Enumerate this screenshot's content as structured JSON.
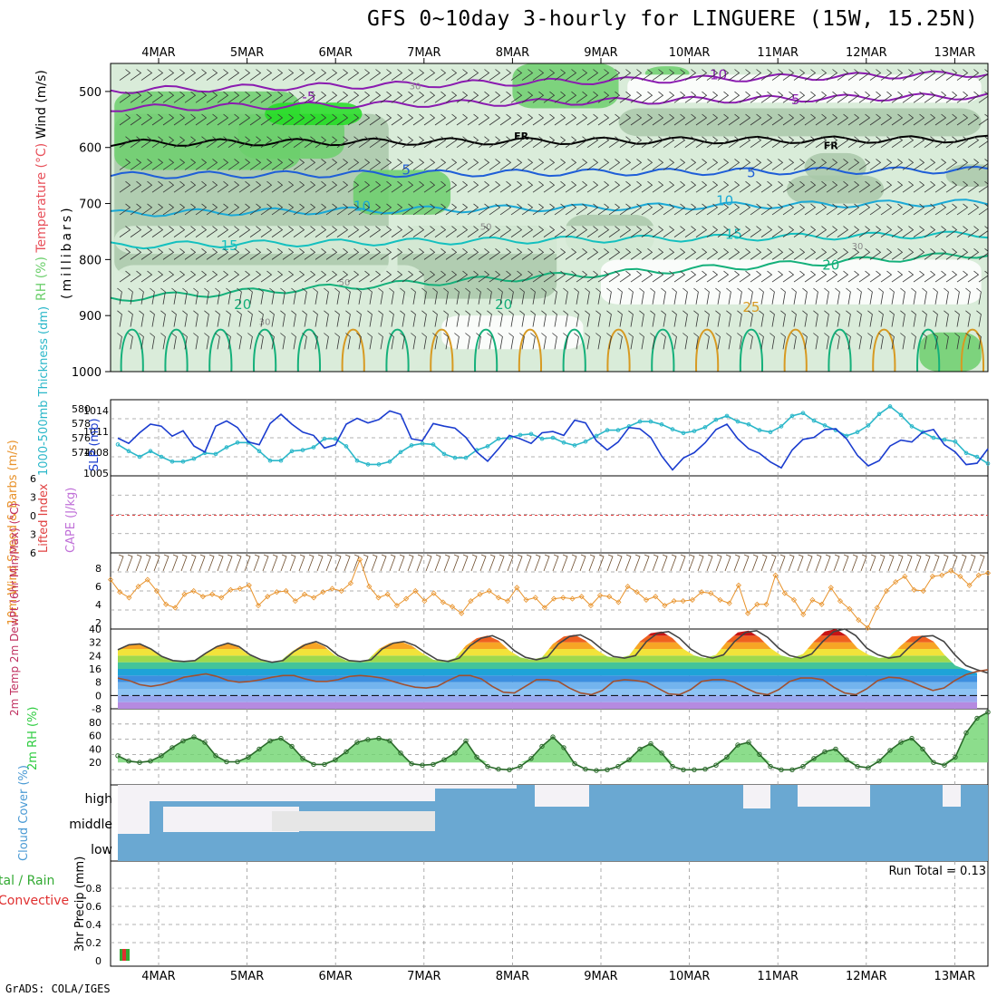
{
  "title": "GFS 0~10day 3-hourly for LINGUERE (15W, 15.25N)",
  "footer": "GrADS: COLA/IGES",
  "colors": {
    "rh_light": "#d9ecd9",
    "rh_mid": "#a9c8a9",
    "rh_green": "#6ccf6c",
    "rh_bright": "#22dd22",
    "temp_purple": "#8a1bb0",
    "temp_blue": "#1e5ed8",
    "temp_cyan": "#1aa9d6",
    "temp_teal": "#13c0bf",
    "temp_green": "#14b07a",
    "temp_orange": "#d79a22",
    "freezing": "#000000",
    "slp": "#1a3ccf",
    "thickness": "#2ab7c9",
    "lifted_index": "#e04040",
    "wind10m": "#e8922a",
    "barb": "#6b4a2a",
    "rh2m": "#2ecc40",
    "cloud_blue": "#6aa8d2",
    "cloud_white": "#f4f2f6",
    "cloud_gray": "#e6e6e6",
    "precip_green": "#33aa33",
    "precip_red": "#e03030"
  },
  "chart_data": [
    {
      "panel": "upper_air",
      "type": "heatmap",
      "ylabel_parts": [
        "RH (%)",
        "Temperature (°C)",
        "Wind (m/s)"
      ],
      "ylabel2": "(millibars)",
      "y_ticks": [
        "500",
        "600",
        "700",
        "800",
        "900",
        "1000"
      ],
      "x_ticks": [
        "4MAR",
        "5MAR",
        "6MAR",
        "7MAR",
        "8MAR",
        "9MAR",
        "10MAR",
        "11MAR",
        "12MAR",
        "13MAR"
      ],
      "ylim": [
        450,
        1000
      ],
      "isotherm_labels": [
        {
          "label": "-10",
          "level": 470,
          "day": 6.3,
          "color": "temp_purple"
        },
        {
          "label": "5",
          "level": 515,
          "day": 7.2,
          "color": "temp_purple"
        },
        {
          "label": "-5",
          "level": 510,
          "day": 1.7,
          "color": "temp_purple"
        },
        {
          "label": "FR",
          "level": 578,
          "day": 4.1,
          "color": "freezing"
        },
        {
          "label": "FR",
          "level": 595,
          "day": 7.6,
          "color": "freezing"
        },
        {
          "label": "5",
          "level": 640,
          "day": 2.8,
          "color": "temp_blue"
        },
        {
          "label": "5",
          "level": 645,
          "day": 6.7,
          "color": "temp_blue"
        },
        {
          "label": "10",
          "level": 705,
          "day": 2.3,
          "color": "temp_cyan"
        },
        {
          "label": "10",
          "level": 695,
          "day": 6.4,
          "color": "temp_cyan"
        },
        {
          "label": "15",
          "level": 775,
          "day": 0.8,
          "color": "temp_teal"
        },
        {
          "label": "15",
          "level": 755,
          "day": 6.5,
          "color": "temp_teal"
        },
        {
          "label": "20",
          "level": 880,
          "day": 0.95,
          "color": "temp_green"
        },
        {
          "label": "20",
          "level": 880,
          "day": 3.9,
          "color": "temp_green"
        },
        {
          "label": "20",
          "level": 810,
          "day": 7.6,
          "color": "temp_green"
        },
        {
          "label": "25",
          "level": 885,
          "day": 6.7,
          "color": "temp_orange"
        }
      ],
      "rh_labels": [
        {
          "label": "30",
          "level": 490,
          "day": 2.9
        },
        {
          "label": "50",
          "level": 740,
          "day": 3.7
        },
        {
          "label": "30",
          "level": 775,
          "day": 7.9
        },
        {
          "label": "50",
          "level": 840,
          "day": 2.1
        },
        {
          "label": "30",
          "level": 910,
          "day": 1.2
        }
      ]
    },
    {
      "panel": "slp_thickness",
      "type": "line",
      "ylabel_left": "1000-500mb Thickness (dm)",
      "ylabel_right": "SLP (mb)",
      "y_ticks_left": [
        "580",
        "578",
        "576",
        "574"
      ],
      "y_ticks_right": [
        "1014",
        "1011",
        "1008",
        "1005"
      ],
      "series": [
        {
          "name": "SLP (mb)",
          "color": "slp",
          "values": [
            1010.2,
            1009.4,
            1011.0,
            1012.3,
            1012.0,
            1010.5,
            1011.3,
            1009.0,
            1008.1,
            1012.0,
            1012.8,
            1011.8,
            1009.6,
            1009.2,
            1012.4,
            1013.8,
            1012.3,
            1011.1,
            1010.6,
            1008.7,
            1009.2,
            1012.3,
            1013.2,
            1012.5,
            1013.0,
            1014.3,
            1013.8,
            1010.1,
            1009.8,
            1012.4,
            1012.0,
            1011.7,
            1010.3,
            1008.1,
            1006.7,
            1008.6,
            1010.6,
            1010.1,
            1009.4,
            1011.0,
            1011.2,
            1010.6,
            1012.9,
            1012.5,
            1009.8,
            1008.4,
            1009.6,
            1011.8,
            1011.6,
            1010.3,
            1007.5,
            1005.4,
            1007.2,
            1008.0,
            1009.5,
            1011.5,
            1012.3,
            1010.1,
            1008.6,
            1007.9,
            1006.6,
            1005.7,
            1008.4,
            1010.0,
            1010.3,
            1011.5,
            1011.6,
            1010.1,
            1007.6,
            1006.0,
            1006.8,
            1009.0,
            1009.9,
            1009.6,
            1011.1,
            1011.5,
            1009.2,
            1008.1,
            1006.2,
            1006.4,
            1008.6
          ]
        },
        {
          "name": "1000-500mb Thickness (dm)",
          "color": "thickness",
          "values": [
            576.3,
            575.6,
            575.0,
            575.6,
            575.0,
            574.5,
            574.5,
            574.8,
            575.4,
            575.3,
            576.0,
            576.5,
            576.5,
            575.6,
            574.6,
            574.6,
            575.6,
            575.7,
            576.0,
            576.9,
            576.9,
            576.1,
            574.6,
            574.2,
            574.2,
            574.5,
            575.5,
            576.2,
            576.4,
            576.3,
            575.3,
            574.9,
            574.9,
            575.7,
            576.1,
            576.9,
            577.0,
            577.3,
            577.4,
            576.9,
            577.0,
            576.5,
            576.2,
            576.6,
            577.2,
            577.8,
            577.8,
            578.2,
            578.7,
            578.7,
            578.4,
            577.9,
            577.5,
            577.7,
            578.1,
            578.9,
            579.3,
            578.7,
            578.4,
            577.8,
            577.6,
            578.2,
            579.3,
            579.6,
            578.8,
            578.3,
            577.8,
            577.2,
            577.6,
            578.3,
            579.5,
            580.3,
            579.4,
            578.2,
            577.6,
            577.0,
            576.8,
            576.6,
            575.4,
            575.0,
            574.3
          ]
        }
      ]
    },
    {
      "panel": "cape_li",
      "type": "line",
      "ylabel_left": "Lifted Index",
      "ylabel_right": "CAPE (J/kg)",
      "y_ticks": [
        "6",
        "3",
        "0",
        "3",
        "6"
      ],
      "ylim": [
        -6,
        6
      ],
      "series": [
        {
          "name": "Lifted Index",
          "color": "lifted_index",
          "values": [
            0,
            0
          ]
        }
      ]
    },
    {
      "panel": "wind10m",
      "type": "line",
      "ylabel": "10m Wind Speed & Barbs (m/s)",
      "y_ticks": [
        "8",
        "6",
        "4",
        "2"
      ],
      "ylim": [
        1.8,
        8.6
      ],
      "series": [
        {
          "name": "10m Wind Speed",
          "color": "wind10m",
          "values": [
            6.2,
            5.1,
            4.6,
            5.6,
            6.2,
            5.2,
            4.0,
            3.7,
            4.9,
            5.2,
            4.7,
            4.9,
            4.6,
            5.3,
            5.4,
            5.7,
            3.9,
            4.7,
            5.1,
            5.2,
            4.3,
            4.9,
            4.6,
            5.1,
            5.4,
            5.2,
            5.9,
            8.0,
            5.6,
            4.6,
            4.9,
            3.9,
            4.5,
            5.2,
            4.3,
            5.0,
            4.2,
            3.8,
            3.2,
            4.3,
            4.9,
            5.2,
            4.6,
            4.3,
            5.5,
            4.4,
            4.6,
            3.7,
            4.5,
            4.6,
            4.5,
            4.7,
            3.9,
            4.8,
            4.7,
            4.2,
            5.6,
            5.1,
            4.4,
            4.7,
            3.9,
            4.3,
            4.3,
            4.4,
            5.1,
            5.0,
            4.4,
            4.1,
            5.7,
            3.2,
            4.0,
            4.0,
            6.6,
            5.0,
            4.4,
            3.1,
            4.4,
            4.0,
            5.5,
            4.3,
            3.6,
            2.6,
            1.9,
            3.7,
            5.2,
            6.0,
            6.5,
            5.3,
            5.2,
            6.5,
            6.6,
            7.0,
            6.5,
            5.7,
            6.6,
            6.8
          ]
        }
      ]
    },
    {
      "panel": "temp2m",
      "type": "area",
      "ylabel": "2m Temp 2m DewPt (6hr Min/Max) (°C)",
      "y_ticks": [
        "40",
        "32",
        "24",
        "16",
        "8",
        "0",
        "-8"
      ],
      "ylim": [
        -8,
        40
      ],
      "series": [
        {
          "name": "2m Temp",
          "values": [
            27.5,
            30.5,
            31.0,
            28.0,
            23.5,
            21.0,
            20.5,
            21.0,
            25.5,
            29.5,
            31.5,
            29.5,
            24.5,
            21.5,
            20.0,
            21.0,
            26.5,
            30.5,
            32.5,
            29.5,
            24.0,
            21.0,
            20.5,
            21.5,
            28.0,
            31.5,
            32.5,
            30.0,
            25.5,
            21.5,
            20.5,
            22.5,
            30.0,
            34.5,
            36.0,
            33.0,
            27.0,
            23.0,
            21.5,
            23.0,
            31.0,
            35.5,
            36.5,
            33.0,
            27.5,
            23.5,
            22.5,
            24.0,
            32.5,
            37.5,
            38.5,
            34.5,
            28.0,
            24.0,
            22.5,
            24.5,
            32.5,
            38.0,
            39.0,
            35.0,
            28.5,
            24.0,
            22.5,
            25.0,
            32.5,
            38.5,
            40.0,
            36.0,
            28.5,
            24.5,
            22.5,
            23.5,
            30.0,
            35.5,
            36.0,
            32.5,
            24.5,
            18.0,
            15.5,
            13.5
          ]
        },
        {
          "name": "2m DewPt",
          "values": [
            10.5,
            9.0,
            6.5,
            5.5,
            6.5,
            8.5,
            11.0,
            12.0,
            13.0,
            11.5,
            9.0,
            8.0,
            8.5,
            9.5,
            11.0,
            12.0,
            12.0,
            10.0,
            8.5,
            8.5,
            9.5,
            11.5,
            12.0,
            11.5,
            10.5,
            8.5,
            6.5,
            5.0,
            4.5,
            5.5,
            9.0,
            12.0,
            12.0,
            10.0,
            5.5,
            2.0,
            1.5,
            5.5,
            9.5,
            9.5,
            8.5,
            4.5,
            1.5,
            0.5,
            3.0,
            8.5,
            9.5,
            9.0,
            8.0,
            4.5,
            1.0,
            0.5,
            3.5,
            8.5,
            9.5,
            9.5,
            8.0,
            4.5,
            1.5,
            0.5,
            3.5,
            8.5,
            10.5,
            10.5,
            9.5,
            5.0,
            1.5,
            0.5,
            4.0,
            9.0,
            11.0,
            10.5,
            8.5,
            5.5,
            3.0,
            4.5,
            9.0,
            12.5,
            14.5,
            15.5
          ]
        }
      ]
    },
    {
      "panel": "rh2m",
      "type": "area",
      "ylabel": "2m RH (%)",
      "y_ticks": [
        "80",
        "60",
        "40",
        "20"
      ],
      "ylim": [
        0,
        100
      ],
      "series": [
        {
          "name": "2m RH",
          "values": [
            30,
            22,
            20,
            22,
            30,
            42,
            52,
            58,
            50,
            30,
            21,
            21,
            28,
            40,
            52,
            56,
            44,
            26,
            17,
            17,
            24,
            36,
            50,
            54,
            56,
            52,
            34,
            18,
            16,
            17,
            24,
            34,
            52,
            28,
            14,
            10,
            9,
            14,
            26,
            44,
            58,
            42,
            18,
            10,
            8,
            9,
            14,
            24,
            40,
            48,
            34,
            14,
            9,
            9,
            10,
            16,
            28,
            46,
            50,
            32,
            14,
            9,
            9,
            14,
            26,
            36,
            40,
            24,
            14,
            12,
            22,
            38,
            50,
            56,
            40,
            20,
            16,
            28,
            64,
            86,
            95
          ]
        }
      ]
    },
    {
      "panel": "cloud_cover",
      "type": "heatmap",
      "ylabel": "Cloud Cover (%)",
      "layers": [
        "high",
        "middle",
        "low"
      ]
    },
    {
      "panel": "precip",
      "type": "bar",
      "ylabel_left": "Total / Rain Convective",
      "ylabel_right": "3hr Precip (mm)",
      "y_ticks": [
        "0.8",
        "0.6",
        "0.4",
        "0.2",
        "0"
      ],
      "ylim": [
        0,
        1.0
      ],
      "annotation": "Run Total = 0.13",
      "bars": [
        {
          "day": 0.1,
          "total": 0.13,
          "convective": 0.06
        }
      ]
    }
  ]
}
